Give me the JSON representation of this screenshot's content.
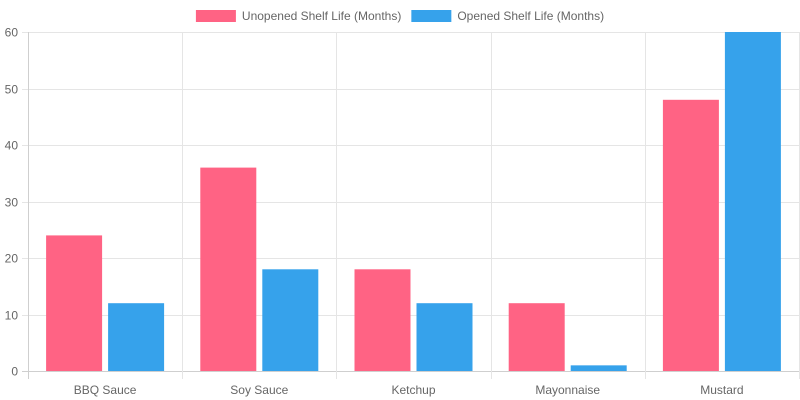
{
  "chart_data": {
    "type": "bar",
    "categories": [
      "BBQ Sauce",
      "Soy Sauce",
      "Ketchup",
      "Mayonnaise",
      "Mustard"
    ],
    "series": [
      {
        "name": "Unopened Shelf Life (Months)",
        "values": [
          24,
          36,
          18,
          12,
          48
        ],
        "color": "#ff6384"
      },
      {
        "name": "Opened Shelf Life (Months)",
        "values": [
          12,
          18,
          12,
          1,
          60
        ],
        "color": "#36a2eb"
      }
    ],
    "yticks": [
      "0",
      "10",
      "20",
      "30",
      "40",
      "50",
      "60"
    ],
    "ylim": [
      0,
      60
    ],
    "grid": true,
    "legend": "top-center"
  }
}
